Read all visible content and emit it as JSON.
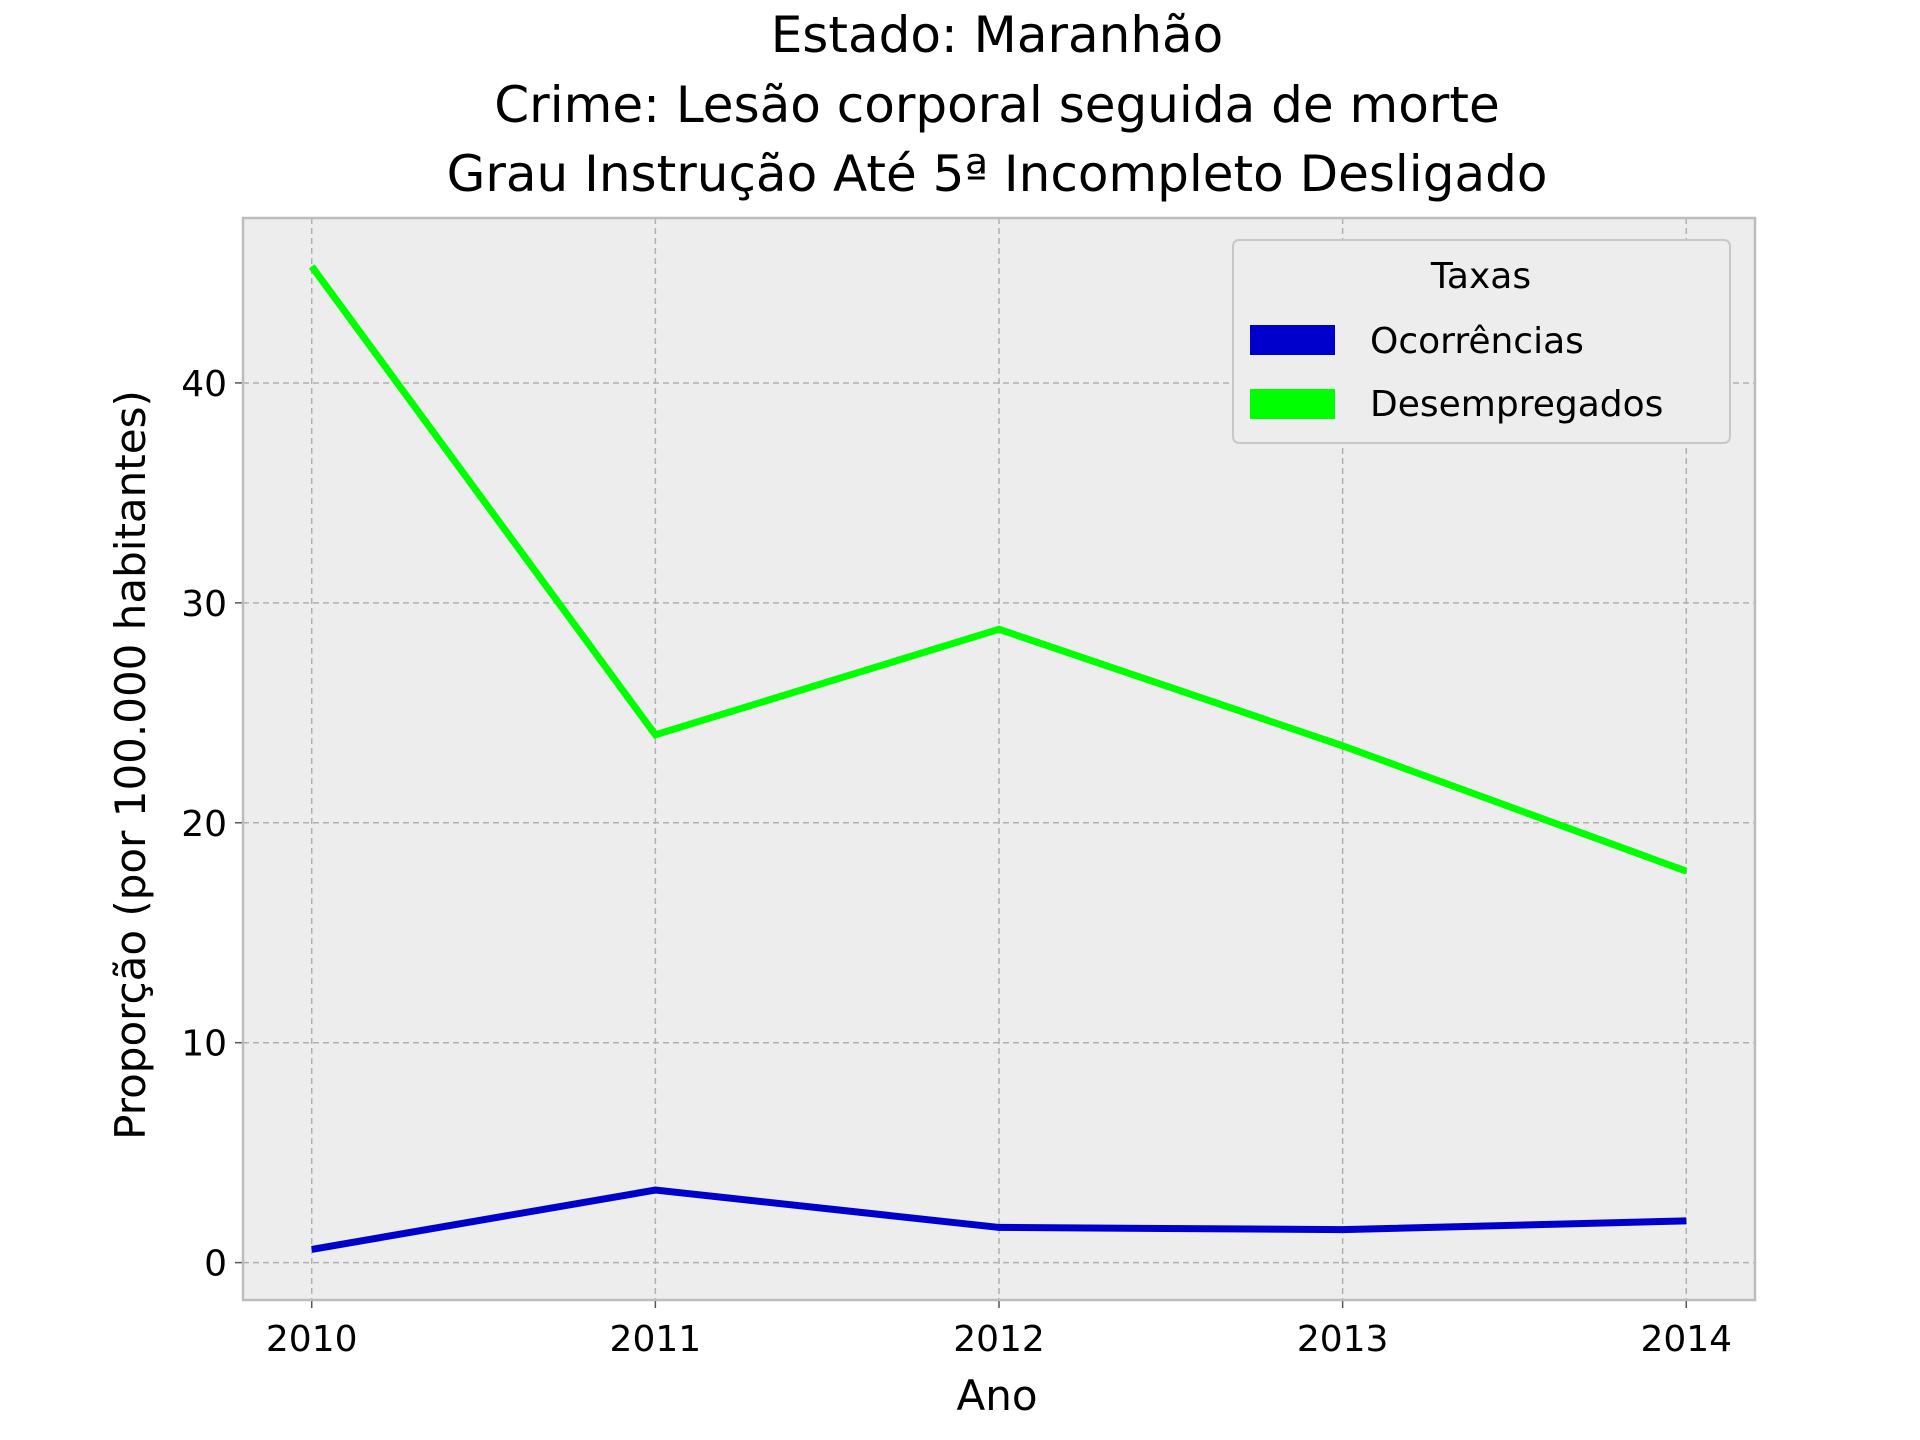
{
  "chart_data": {
    "type": "line",
    "title_lines": [
      "Estado: Maranhão",
      "Crime: Lesão corporal seguida de morte",
      "Grau Instrução  Até 5ª Incompleto   Desligado"
    ],
    "xlabel": "Ano",
    "ylabel": "Proporção (por 100.000 habitantes)",
    "x": [
      2010,
      2011,
      2012,
      2013,
      2014
    ],
    "x_tick_labels": [
      "2010",
      "2011",
      "2012",
      "2013",
      "2014"
    ],
    "y_ticks": [
      0,
      10,
      20,
      30,
      40
    ],
    "y_tick_labels": [
      "0",
      "10",
      "20",
      "30",
      "40"
    ],
    "xlim": [
      2009.8,
      2014.2
    ],
    "ylim": [
      -1.7,
      47.5
    ],
    "grid": true,
    "legend": {
      "title": "Taxas",
      "placement": "top-right"
    },
    "series": [
      {
        "name": "Ocorrências",
        "color": "#0000cc",
        "values": [
          0.6,
          3.3,
          1.6,
          1.5,
          1.9
        ]
      },
      {
        "name": "Desempregados",
        "color": "#00ff00",
        "values": [
          45.3,
          24.0,
          28.8,
          23.5,
          17.8
        ]
      }
    ],
    "colors": {
      "plot_background": "#ededed",
      "frame": "#bcbcbc"
    }
  }
}
